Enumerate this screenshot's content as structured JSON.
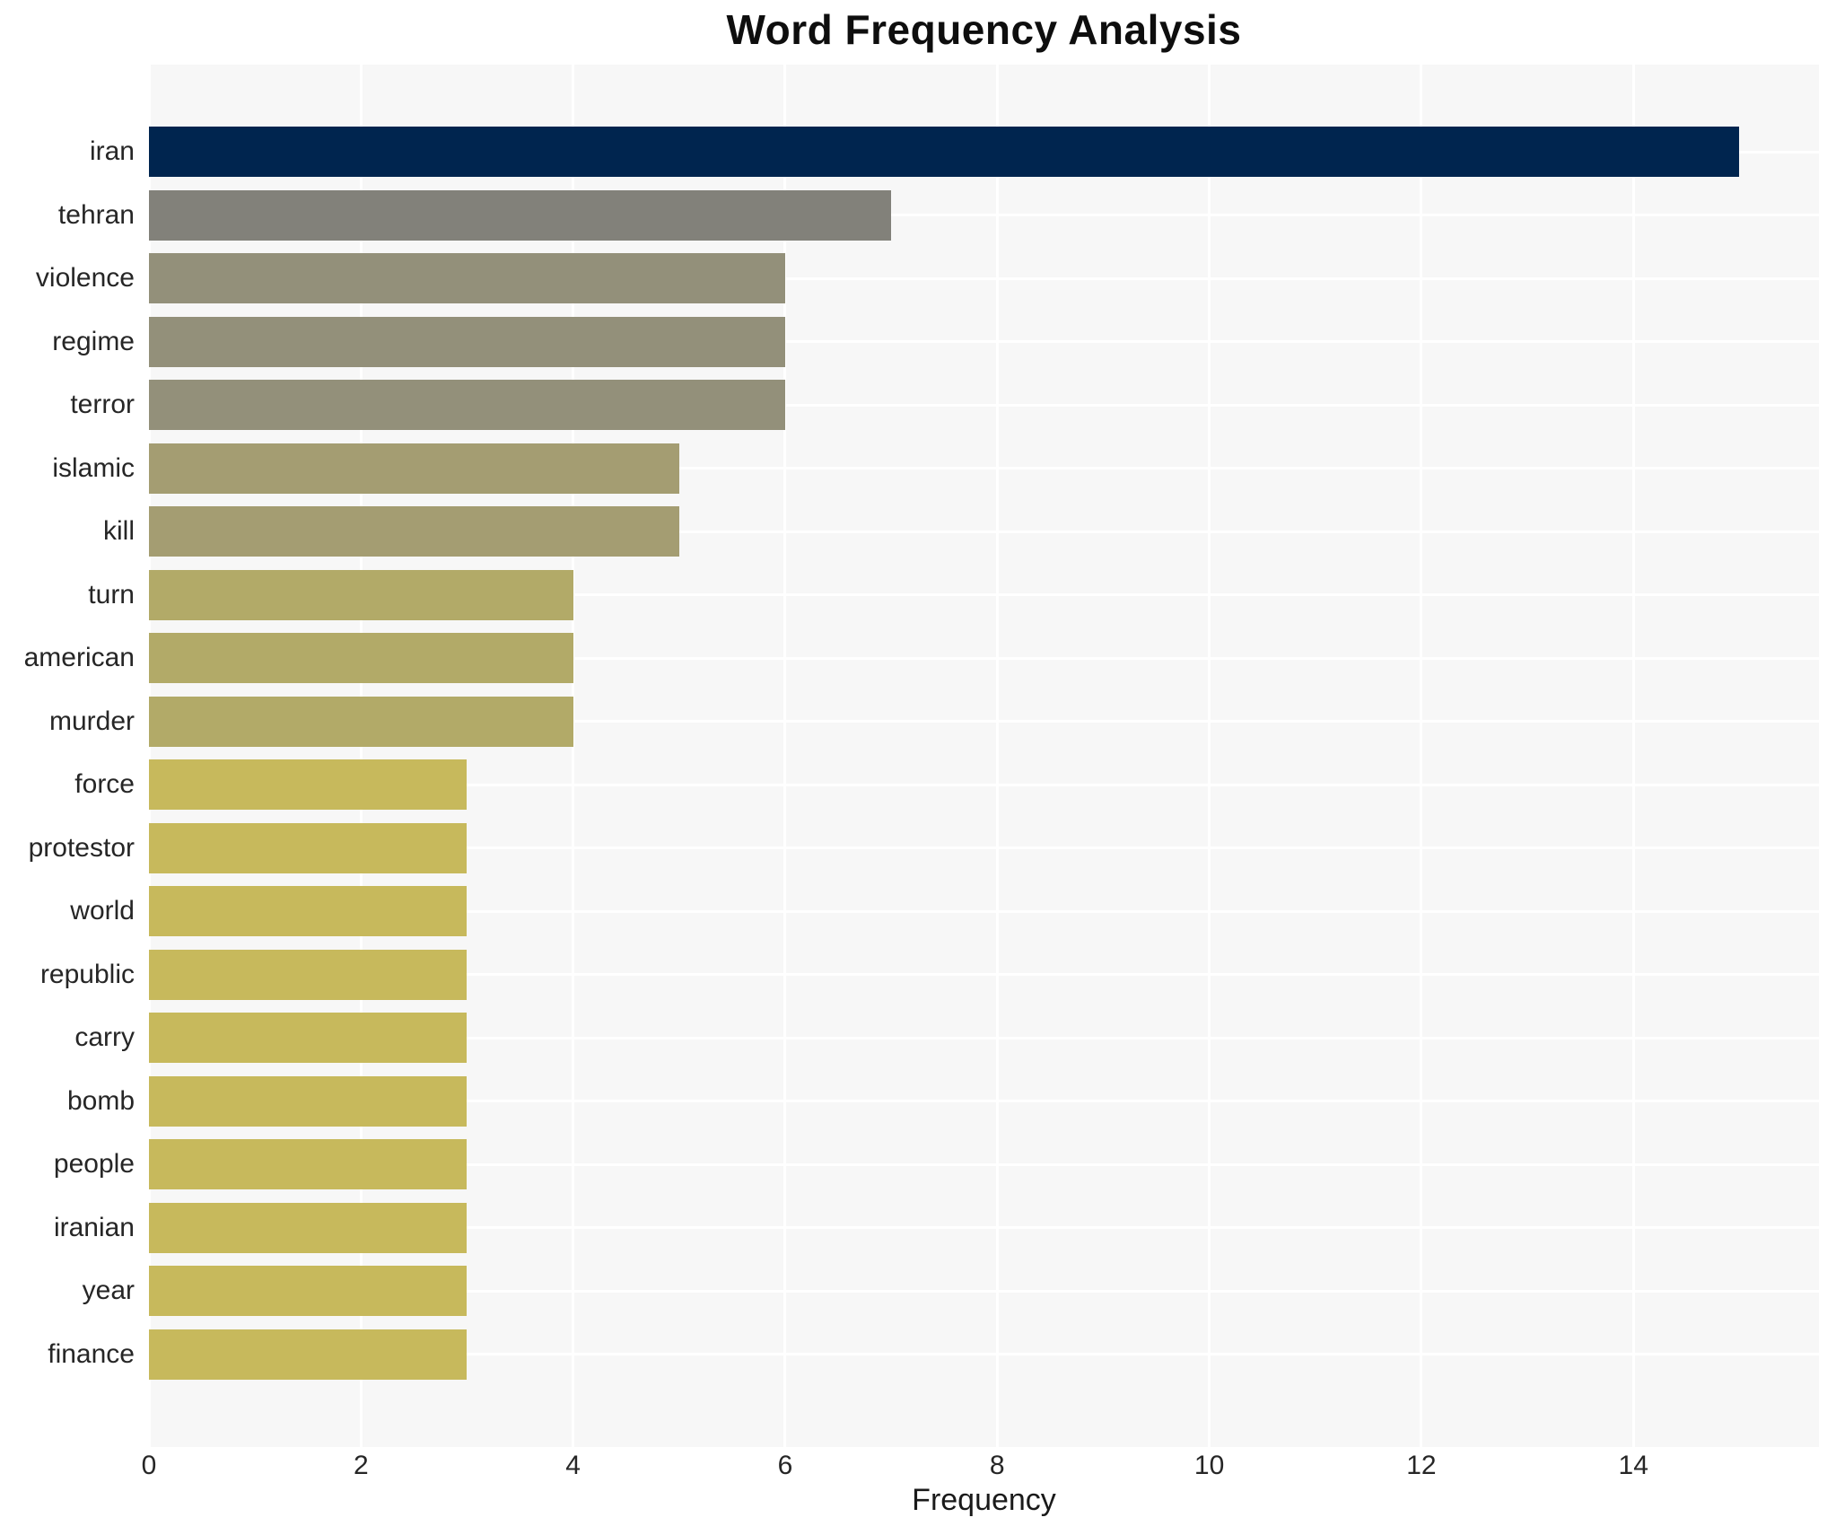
{
  "figure": {
    "title": "Word Frequency Analysis",
    "xlabel": "Frequency"
  },
  "chart_data": {
    "type": "bar",
    "orientation": "horizontal",
    "title": "Word Frequency Analysis",
    "xlabel": "Frequency",
    "ylabel": "",
    "categories": [
      "iran",
      "tehran",
      "violence",
      "regime",
      "terror",
      "islamic",
      "kill",
      "turn",
      "american",
      "murder",
      "force",
      "protestor",
      "world",
      "republic",
      "carry",
      "bomb",
      "people",
      "iranian",
      "year",
      "finance"
    ],
    "values": [
      15,
      7,
      6,
      6,
      6,
      5,
      5,
      4,
      4,
      4,
      3,
      3,
      3,
      3,
      3,
      3,
      3,
      3,
      3,
      3
    ],
    "bar_colors": [
      "#00254f",
      "#82817a",
      "#93907a",
      "#93907a",
      "#93907a",
      "#a49d72",
      "#a49d72",
      "#b2aa68",
      "#b2aa68",
      "#b2aa68",
      "#c7b95c",
      "#c7b95c",
      "#c7b95c",
      "#c7b95c",
      "#c7b95c",
      "#c7b95c",
      "#c7b95c",
      "#c7b95c",
      "#c7b95c",
      "#c7b95c"
    ],
    "xlim": [
      0,
      15.75
    ],
    "xticks": [
      0,
      2,
      4,
      6,
      8,
      10,
      12,
      14
    ],
    "grid": true,
    "grid_color": "#ffffff",
    "plot_background": "#f7f7f7",
    "figure_background": "#ffffff",
    "tick_text_color": "#262626",
    "legend": "none"
  }
}
